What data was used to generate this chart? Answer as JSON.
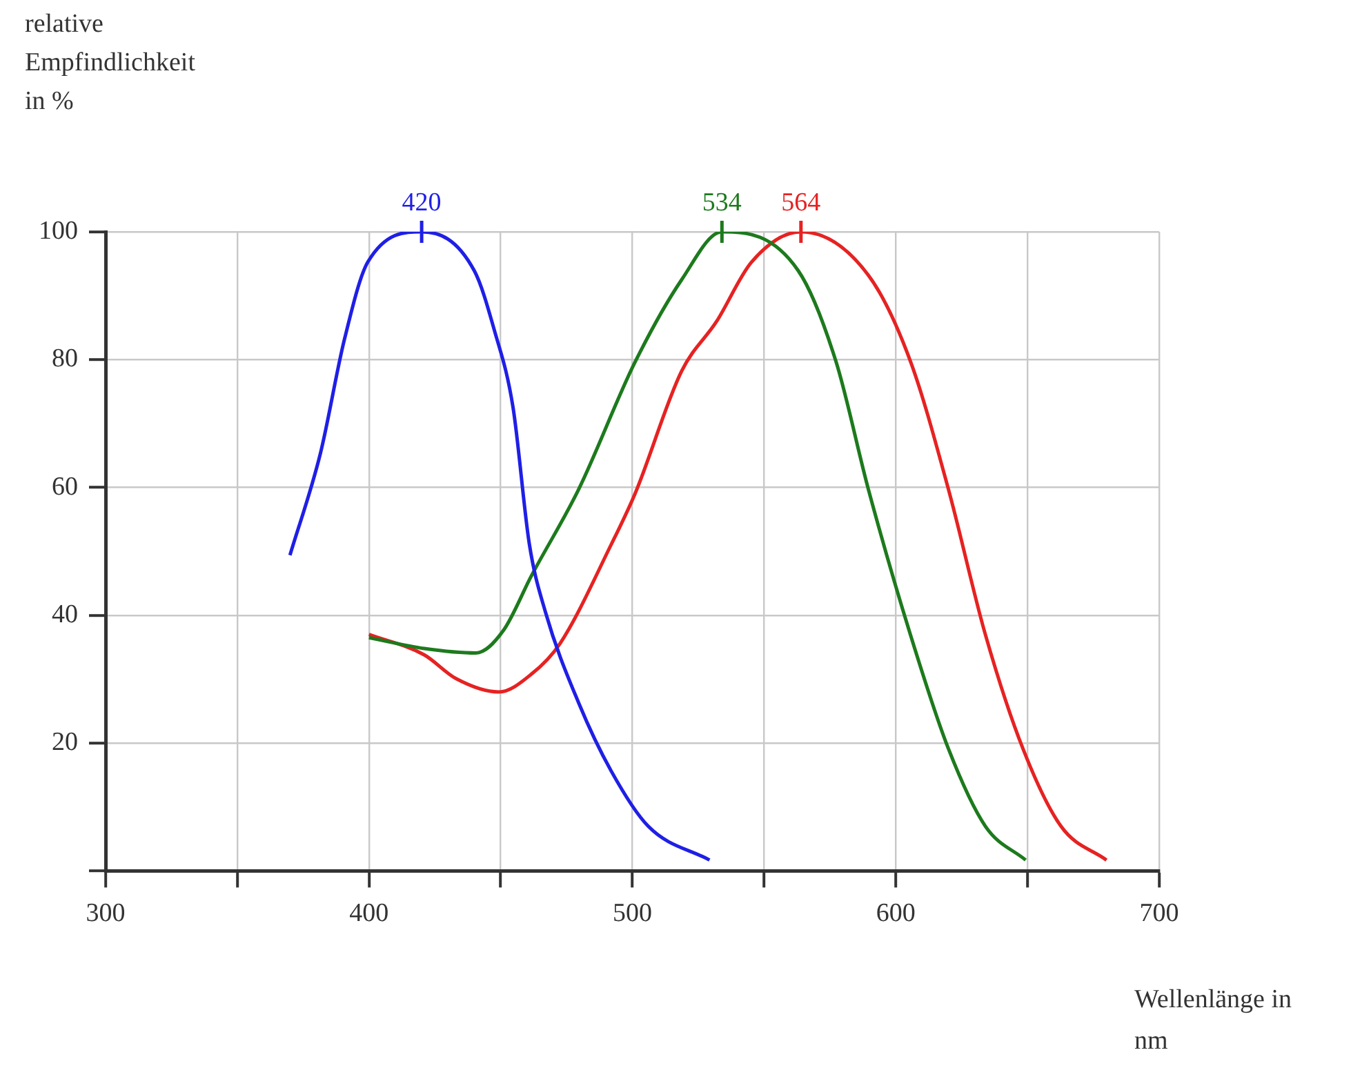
{
  "chart_data": {
    "type": "line",
    "xlabel": "Wellenlänge in nm",
    "ylabel": "relative Empfindlichkeit in %",
    "xlim": [
      300,
      700
    ],
    "ylim": [
      0,
      100
    ],
    "xticks": [
      300,
      {
        "value": 350,
        "label": null
      },
      400,
      {
        "value": 450,
        "label": null
      },
      500,
      {
        "value": 550,
        "label": null
      },
      600,
      {
        "value": 650,
        "label": null
      },
      700
    ],
    "yticks": [
      {
        "value": 0,
        "label": null
      },
      20,
      40,
      60,
      80,
      100
    ],
    "grid": true,
    "legend": false,
    "series": [
      {
        "color": "#1f1fe6",
        "x": [
          370,
          381.6,
          390.7,
          399.6,
          420,
          440,
          447.6,
          454.7,
          460.9,
          467,
          479.6,
          492,
          506,
          529.3
        ],
        "values": [
          49.4,
          65.4,
          83.2,
          95.3,
          100,
          93.9,
          84.6,
          72.5,
          51.1,
          40.5,
          26.3,
          15.6,
          7,
          1.7
        ]
      },
      {
        "color": "#1d7a1d",
        "x": [
          400,
          421,
          440.6,
          451,
          461.7,
          479.6,
          501,
          518.7,
          534,
          563,
          577.3,
          589.6,
          605.6,
          620,
          634,
          649.3
        ],
        "values": [
          36.5,
          34.8,
          34.1,
          37.6,
          46.2,
          59.7,
          79.6,
          92.5,
          100,
          93.9,
          79.7,
          59.7,
          36.9,
          19.1,
          7,
          1.7
        ]
      },
      {
        "color": "#e62222",
        "x": [
          400,
          421,
          433,
          449.3,
          461.7,
          472.4,
          492,
          501,
          518.7,
          532,
          545.3,
          564,
          589.6,
          605.6,
          620,
          634,
          648.3,
          662.7,
          680
        ],
        "values": [
          37,
          33.8,
          30.1,
          28,
          30.8,
          35.5,
          51.1,
          59,
          78.2,
          86,
          95.3,
          100,
          93.2,
          79.7,
          59.7,
          37,
          19.1,
          7,
          1.7
        ]
      }
    ],
    "annotations": [
      {
        "text": "420",
        "x": 420,
        "y": 100
      },
      {
        "text": "534",
        "x": 534,
        "y": 100
      },
      {
        "text": "564",
        "x": 564,
        "y": 100
      }
    ]
  }
}
